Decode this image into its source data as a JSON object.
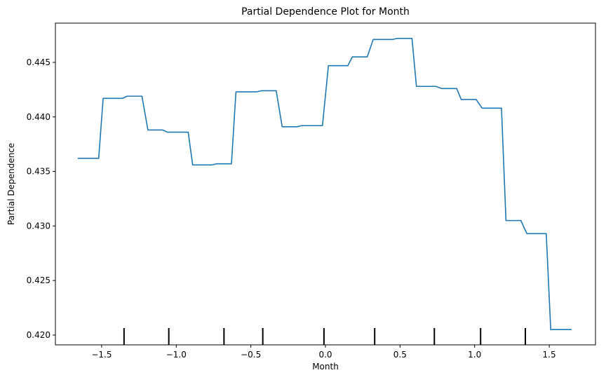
{
  "chart_data": {
    "type": "line",
    "title": "Partial Dependence Plot for Month",
    "xlabel": "Month",
    "ylabel": "Partial Dependence",
    "xlim": [
      -1.81,
      1.81
    ],
    "ylim": [
      0.4191,
      0.4486
    ],
    "xticks": [
      -1.5,
      -1.0,
      -0.5,
      0.0,
      0.5,
      1.0,
      1.5
    ],
    "xtick_labels": [
      "−1.5",
      "−1.0",
      "−0.5",
      "0.0",
      "0.5",
      "1.0",
      "1.5"
    ],
    "yticks": [
      0.42,
      0.425,
      0.43,
      0.435,
      0.44,
      0.445
    ],
    "ytick_labels": [
      "0.420",
      "0.425",
      "0.430",
      "0.435",
      "0.440",
      "0.445"
    ],
    "grid": false,
    "line_color": "#1f77b4",
    "rug_deciles": [
      -1.35,
      -1.05,
      -0.68,
      -0.42,
      -0.01,
      0.33,
      0.73,
      1.04,
      1.34
    ],
    "series": [
      {
        "x": [
          -1.66,
          -1.52,
          -1.49,
          -1.36,
          -1.33,
          -1.23,
          -1.19,
          -1.09,
          -1.06,
          -0.92,
          -0.89,
          -0.76,
          -0.73,
          -0.63,
          -0.6,
          -0.46,
          -0.43,
          -0.33,
          -0.29,
          -0.19,
          -0.16,
          -0.02,
          0.02,
          0.15,
          0.18,
          0.28,
          0.32,
          0.45,
          0.48,
          0.58,
          0.61,
          0.74,
          0.78,
          0.88,
          0.91,
          1.01,
          1.05,
          1.18,
          1.21,
          1.31,
          1.35,
          1.48,
          1.51,
          1.65
        ],
        "y": [
          0.4362,
          0.4362,
          0.4417,
          0.4417,
          0.4419,
          0.4419,
          0.4388,
          0.4388,
          0.4386,
          0.4386,
          0.4356,
          0.4356,
          0.4357,
          0.4357,
          0.4423,
          0.4423,
          0.4424,
          0.4424,
          0.4391,
          0.4391,
          0.4392,
          0.4392,
          0.4447,
          0.4447,
          0.4455,
          0.4455,
          0.4471,
          0.4471,
          0.4472,
          0.4472,
          0.4428,
          0.4428,
          0.4426,
          0.4426,
          0.4416,
          0.4416,
          0.4408,
          0.4408,
          0.4305,
          0.4305,
          0.4293,
          0.4293,
          0.4205,
          0.4205
        ]
      }
    ]
  }
}
